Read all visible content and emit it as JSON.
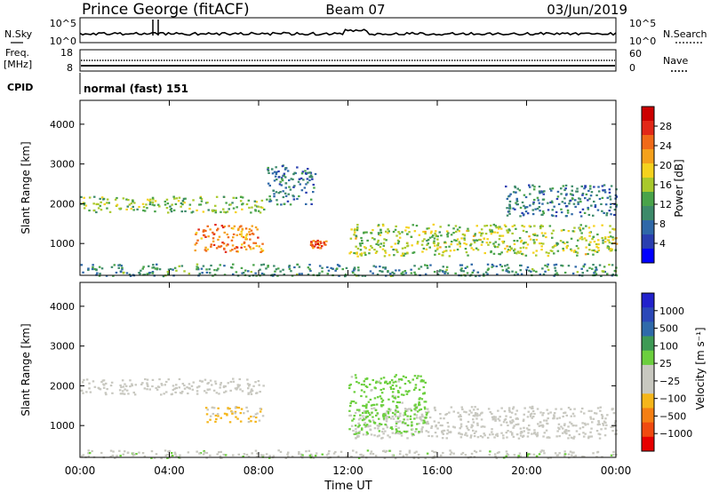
{
  "header": {
    "station": "Prince George (fitACF)",
    "beam": "Beam 07",
    "date": "03/Jun/2019"
  },
  "sky_panel": {
    "left_label": "N.Sky",
    "right_label": "N.Search",
    "left_ticks": [
      "10^5",
      "10^0"
    ],
    "right_ticks": [
      "10^5",
      "10^0"
    ]
  },
  "freq_panel": {
    "left_label_line1": "Freq.",
    "left_label_line2": "[MHz]",
    "right_label": "Nave",
    "left_ticks": [
      "18",
      "8"
    ],
    "right_ticks": [
      "60",
      "0"
    ]
  },
  "cpid": {
    "label": "CPID",
    "value": "normal (fast) 151"
  },
  "xaxis": {
    "title": "Time UT",
    "ticks": [
      "00:00",
      "04:00",
      "08:00",
      "12:00",
      "16:00",
      "20:00",
      "00:00"
    ]
  },
  "power_colorbar": {
    "label": "Power [dB]",
    "ticks": [
      "28",
      "24",
      "20",
      "16",
      "12",
      "8",
      "4"
    ]
  },
  "velocity_colorbar": {
    "label": "Velocity [m s⁻¹]",
    "ticks": [
      "1000",
      "500",
      "100",
      "25",
      "−25",
      "−100",
      "−500",
      "−1000"
    ]
  },
  "chart_data": [
    {
      "type": "heatmap",
      "panel": "power",
      "ylabel": "Slant Range [km]",
      "xlabel": "Time UT",
      "xlim": [
        0,
        24
      ],
      "ylim": [
        200,
        4600
      ],
      "yticks": [
        1000,
        2000,
        3000,
        4000
      ],
      "colorbar": {
        "label": "Power [dB]",
        "range": [
          0,
          32
        ]
      },
      "regions": [
        {
          "t": [
            0.0,
            8.2
          ],
          "range_km": [
            1800,
            2200
          ],
          "value_db": 14
        },
        {
          "t": [
            5.0,
            8.2
          ],
          "range_km": [
            800,
            1500
          ],
          "value_db": 24
        },
        {
          "t": [
            8.3,
            10.5
          ],
          "range_km": [
            2000,
            3000
          ],
          "value_db": 8
        },
        {
          "t": [
            10.2,
            11.0
          ],
          "range_km": [
            900,
            1100
          ],
          "value_db": 26
        },
        {
          "t": [
            12.0,
            24.0
          ],
          "range_km": [
            700,
            1500
          ],
          "value_db": 16
        },
        {
          "t": [
            19.0,
            24.0
          ],
          "range_km": [
            1700,
            2500
          ],
          "value_db": 8
        },
        {
          "t": [
            0.0,
            24.0
          ],
          "range_km": [
            200,
            500
          ],
          "value_db": 10
        }
      ]
    },
    {
      "type": "heatmap",
      "panel": "velocity",
      "ylabel": "Slant Range [km]",
      "xlabel": "Time UT",
      "xlim": [
        0,
        24
      ],
      "ylim": [
        200,
        4600
      ],
      "yticks": [
        1000,
        2000,
        3000,
        4000
      ],
      "colorbar": {
        "label": "Velocity [m s⁻¹]",
        "range": [
          -1000,
          1000
        ]
      },
      "regions": [
        {
          "t": [
            0.0,
            8.2
          ],
          "range_km": [
            1800,
            2200
          ],
          "value_ms": 0
        },
        {
          "t": [
            5.5,
            8.2
          ],
          "range_km": [
            1100,
            1500
          ],
          "value_ms": -300
        },
        {
          "t": [
            12.0,
            24.0
          ],
          "range_km": [
            700,
            1500
          ],
          "value_ms": 0
        },
        {
          "t": [
            12.0,
            15.5
          ],
          "range_km": [
            800,
            2300
          ],
          "value_ms": 150
        },
        {
          "t": [
            0.0,
            24.0
          ],
          "range_km": [
            200,
            400
          ],
          "value_ms": 60
        }
      ]
    }
  ]
}
